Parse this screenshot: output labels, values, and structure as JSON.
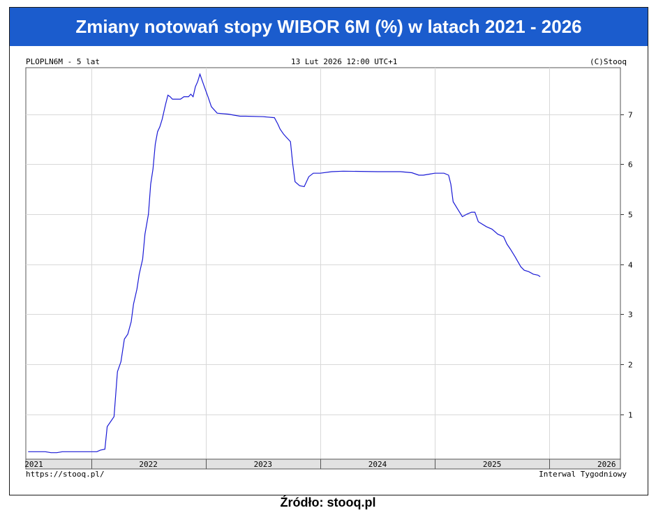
{
  "title": "Zmiany notowań stopy WIBOR 6M (%) w latach 2021 - 2026",
  "header": {
    "symbol": "PLOPLN6M - 5 lat",
    "datetime": "13 Lut 2026 12:00 UTC+1",
    "copyright": "(C)Stooq"
  },
  "footer": {
    "url": "https://stooq.pl/",
    "interval": "Interwal Tygodniowy"
  },
  "source": "Źródło: stooq.pl",
  "colors": {
    "title_bg": "#1b5ccd",
    "line": "#1a1ad6",
    "grid": "#d8d8d8"
  },
  "chart_data": {
    "type": "line",
    "title": "Zmiany notowań stopy WIBOR 6M (%) w latach 2021 - 2026",
    "xlabel": "",
    "ylabel": "",
    "xlim": [
      2020.93,
      2026.12
    ],
    "ylim": [
      0.1,
      7.93
    ],
    "yticks": [
      1,
      2,
      3,
      4,
      5,
      6,
      7
    ],
    "year_labels": [
      {
        "label": "2021",
        "x": 2021.0
      },
      {
        "label": "2022",
        "x": 2022.0
      },
      {
        "label": "2023",
        "x": 2023.0
      },
      {
        "label": "2024",
        "x": 2024.0
      },
      {
        "label": "2025",
        "x": 2025.0
      },
      {
        "label": "2026",
        "x": 2026.0
      }
    ],
    "year_boundaries": [
      2021.5,
      2022.5,
      2023.5,
      2024.5,
      2025.5
    ],
    "grid": true,
    "series": [
      {
        "points": [
          [
            2020.95,
            0.25
          ],
          [
            2021.1,
            0.25
          ],
          [
            2021.15,
            0.23
          ],
          [
            2021.2,
            0.23
          ],
          [
            2021.25,
            0.25
          ],
          [
            2021.4,
            0.25
          ],
          [
            2021.55,
            0.25
          ],
          [
            2021.58,
            0.28
          ],
          [
            2021.62,
            0.3
          ],
          [
            2021.64,
            0.75
          ],
          [
            2021.7,
            0.95
          ],
          [
            2021.73,
            1.85
          ],
          [
            2021.76,
            2.05
          ],
          [
            2021.79,
            2.5
          ],
          [
            2021.82,
            2.6
          ],
          [
            2021.85,
            2.85
          ],
          [
            2021.87,
            3.2
          ],
          [
            2021.9,
            3.5
          ],
          [
            2021.92,
            3.8
          ],
          [
            2021.95,
            4.1
          ],
          [
            2021.97,
            4.6
          ],
          [
            2022.0,
            5.0
          ],
          [
            2022.02,
            5.6
          ],
          [
            2022.04,
            5.9
          ],
          [
            2022.06,
            6.4
          ],
          [
            2022.08,
            6.65
          ],
          [
            2022.1,
            6.75
          ],
          [
            2022.12,
            6.9
          ],
          [
            2022.15,
            7.2
          ],
          [
            2022.17,
            7.38
          ],
          [
            2022.19,
            7.35
          ],
          [
            2022.21,
            7.3
          ],
          [
            2022.28,
            7.3
          ],
          [
            2022.31,
            7.35
          ],
          [
            2022.35,
            7.35
          ],
          [
            2022.37,
            7.4
          ],
          [
            2022.39,
            7.35
          ],
          [
            2022.41,
            7.55
          ],
          [
            2022.43,
            7.65
          ],
          [
            2022.45,
            7.8
          ],
          [
            2022.48,
            7.6
          ],
          [
            2022.52,
            7.35
          ],
          [
            2022.55,
            7.15
          ],
          [
            2022.6,
            7.02
          ],
          [
            2022.7,
            7.0
          ],
          [
            2022.75,
            6.98
          ],
          [
            2022.8,
            6.96
          ],
          [
            2022.85,
            6.96
          ],
          [
            2023.0,
            6.95
          ],
          [
            2023.1,
            6.93
          ],
          [
            2023.13,
            6.8
          ],
          [
            2023.15,
            6.7
          ],
          [
            2023.18,
            6.6
          ],
          [
            2023.2,
            6.55
          ],
          [
            2023.24,
            6.45
          ],
          [
            2023.26,
            6.0
          ],
          [
            2023.28,
            5.65
          ],
          [
            2023.32,
            5.57
          ],
          [
            2023.36,
            5.55
          ],
          [
            2023.4,
            5.75
          ],
          [
            2023.44,
            5.82
          ],
          [
            2023.5,
            5.82
          ],
          [
            2023.6,
            5.85
          ],
          [
            2023.7,
            5.86
          ],
          [
            2024.0,
            5.85
          ],
          [
            2024.2,
            5.85
          ],
          [
            2024.3,
            5.83
          ],
          [
            2024.36,
            5.78
          ],
          [
            2024.4,
            5.78
          ],
          [
            2024.45,
            5.8
          ],
          [
            2024.5,
            5.82
          ],
          [
            2024.58,
            5.82
          ],
          [
            2024.62,
            5.78
          ],
          [
            2024.64,
            5.6
          ],
          [
            2024.66,
            5.25
          ],
          [
            2024.7,
            5.1
          ],
          [
            2024.74,
            4.95
          ],
          [
            2024.78,
            5.0
          ],
          [
            2024.82,
            5.04
          ],
          [
            2024.85,
            5.04
          ],
          [
            2024.88,
            4.85
          ],
          [
            2024.95,
            4.75
          ],
          [
            2025.0,
            4.7
          ],
          [
            2025.05,
            4.6
          ],
          [
            2025.1,
            4.55
          ],
          [
            2025.13,
            4.4
          ],
          [
            2025.16,
            4.3
          ],
          [
            2025.2,
            4.15
          ],
          [
            2025.25,
            3.95
          ],
          [
            2025.28,
            3.88
          ],
          [
            2025.32,
            3.85
          ],
          [
            2025.36,
            3.8
          ],
          [
            2025.4,
            3.78
          ],
          [
            2025.42,
            3.75
          ]
        ]
      }
    ]
  }
}
